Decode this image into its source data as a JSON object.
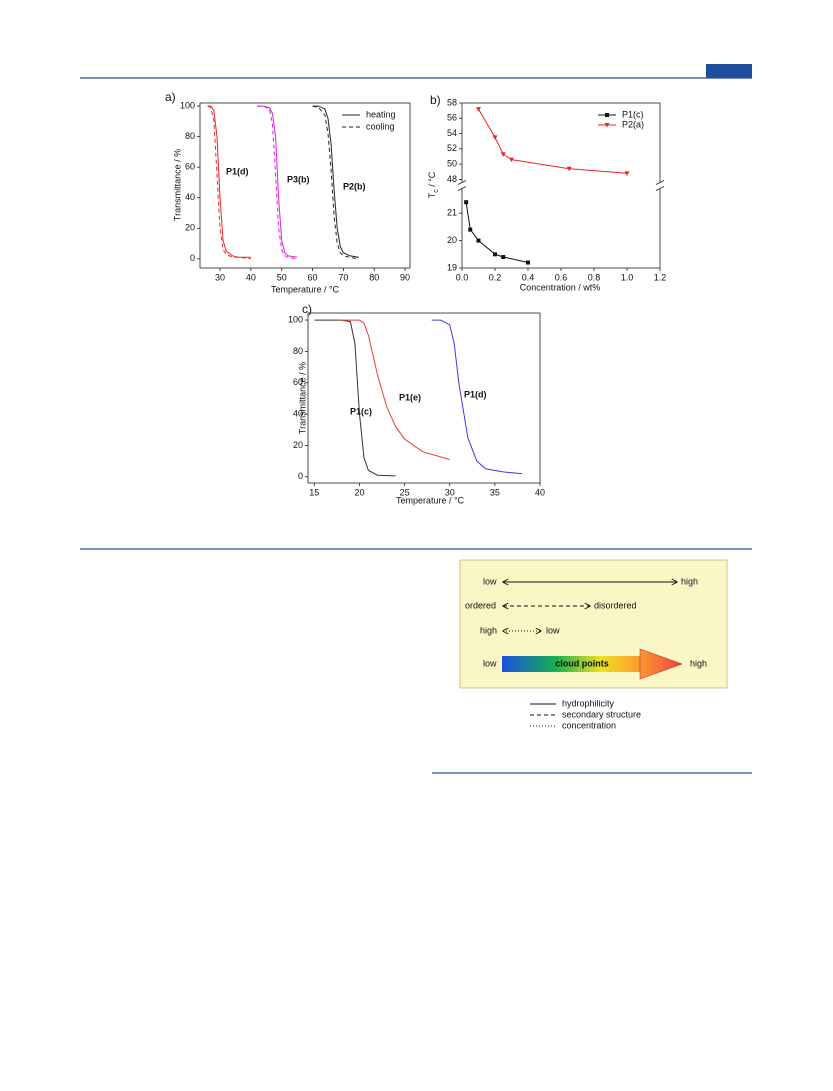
{
  "chart_data": [
    {
      "type": "line",
      "panel_label": "a)",
      "xlabel": "Temperature / °C",
      "ylabel": "Transmittance / %",
      "xlim": [
        23.5,
        91.6
      ],
      "ylim": [
        -6,
        102
      ],
      "xticks": [
        30,
        40,
        50,
        60,
        70,
        80,
        90
      ],
      "yticks": [
        0,
        20,
        40,
        60,
        80,
        100
      ],
      "legend_entries": [
        {
          "label": "heating",
          "style": "solid"
        },
        {
          "label": "cooling",
          "style": "dashed"
        }
      ],
      "annotations": [
        "P1(d)",
        "P3(b)",
        "P2(b)"
      ],
      "series": [
        {
          "color": "#e8262a",
          "style": "solid",
          "x": [
            26,
            27,
            28,
            29,
            30,
            31,
            32,
            34,
            36,
            40
          ],
          "values": [
            100,
            100,
            97,
            80,
            40,
            12,
            5,
            2,
            1,
            1
          ]
        },
        {
          "color": "#e8262a",
          "style": "dashed",
          "x": [
            26,
            27,
            28,
            29,
            30,
            31,
            32,
            34,
            36,
            40
          ],
          "values": [
            100,
            99,
            90,
            55,
            20,
            6,
            3,
            1,
            1,
            0
          ]
        },
        {
          "color": "#e020e0",
          "style": "solid",
          "x": [
            42,
            44,
            46,
            47,
            48,
            49,
            50,
            51,
            52,
            55
          ],
          "values": [
            100,
            100,
            99,
            95,
            80,
            40,
            12,
            4,
            2,
            1
          ]
        },
        {
          "color": "#e020e0",
          "style": "dashed",
          "x": [
            42,
            44,
            46,
            47,
            48,
            49,
            50,
            51,
            52,
            55
          ],
          "values": [
            100,
            100,
            98,
            88,
            55,
            20,
            6,
            2,
            1,
            0
          ]
        },
        {
          "color": "#222222",
          "style": "solid",
          "x": [
            60,
            62,
            64,
            65,
            66,
            67,
            68,
            69,
            70,
            72,
            75
          ],
          "values": [
            100,
            100,
            98,
            92,
            75,
            45,
            20,
            8,
            4,
            2,
            1
          ]
        },
        {
          "color": "#222222",
          "style": "dashed",
          "x": [
            60,
            62,
            64,
            65,
            66,
            67,
            68,
            69,
            70,
            72,
            75
          ],
          "values": [
            100,
            99,
            94,
            82,
            58,
            28,
            10,
            4,
            2,
            1,
            0
          ]
        }
      ]
    },
    {
      "type": "line",
      "panel_label": "b)",
      "xlabel": "Concentration / wt%",
      "ylabel": [
        "T",
        "c",
        " / °C"
      ],
      "xlim": [
        0,
        1.2
      ],
      "ylim": [
        19,
        58
      ],
      "ybreak": [
        21.9,
        47.6
      ],
      "xticks": [
        {
          "value": 0,
          "label": "0.0"
        },
        0.2,
        0.4,
        0.6,
        0.8,
        {
          "value": 1,
          "label": "1.0"
        },
        1.2
      ],
      "yticks": [
        19,
        20,
        21,
        48,
        50,
        52,
        54,
        56,
        58
      ],
      "series": [
        {
          "name": "P1(c)",
          "color": "#111111",
          "marker": "square",
          "x": [
            0.025,
            0.05,
            0.1,
            0.2,
            0.25,
            0.4
          ],
          "values": [
            21.4,
            20.4,
            20.0,
            19.5,
            19.4,
            19.2
          ]
        },
        {
          "name": "P2(a)",
          "color": "#e8262a",
          "marker": "triangle-down",
          "x": [
            0.1,
            0.2,
            0.25,
            0.3,
            0.65,
            1.0
          ],
          "values": [
            57.2,
            53.5,
            51.3,
            50.6,
            49.4,
            48.8
          ]
        }
      ]
    },
    {
      "type": "line",
      "panel_label": "c)",
      "xlabel": "Temperature / °C",
      "ylabel": "Transmittance / %",
      "xlim": [
        14.3,
        40
      ],
      "ylim": [
        -4,
        104.5
      ],
      "xticks": [
        15,
        20,
        25,
        30,
        35,
        40
      ],
      "yticks": [
        0,
        20,
        40,
        60,
        80,
        100
      ],
      "annotations": [
        "P1(c)",
        "P1(e)",
        "P1(d)"
      ],
      "series": [
        {
          "color": "#333333",
          "style": "solid",
          "x": [
            15,
            17,
            18,
            19,
            19.5,
            20,
            20.5,
            21,
            22,
            24
          ],
          "values": [
            100,
            100,
            100,
            99,
            85,
            40,
            12,
            4,
            1,
            0.5
          ]
        },
        {
          "color": "#ee3b3b",
          "style": "solid",
          "x": [
            18,
            20,
            20.5,
            21,
            22,
            23,
            24,
            25,
            27,
            30
          ],
          "values": [
            100,
            100,
            98,
            90,
            65,
            45,
            32,
            24,
            16,
            11
          ]
        },
        {
          "color": "#3a3af0",
          "style": "solid",
          "x": [
            28,
            29,
            30,
            30.5,
            31,
            32,
            33,
            34,
            36,
            38
          ],
          "values": [
            100,
            100,
            97,
            85,
            60,
            25,
            10,
            5,
            3,
            2
          ]
        }
      ]
    }
  ],
  "diagram": {
    "scales": [
      {
        "left": "low",
        "right": "high",
        "style": "solid"
      },
      {
        "left": "ordered",
        "right": "disordered",
        "style": "dashed"
      },
      {
        "left": "high",
        "right": "low",
        "style": "dotted"
      }
    ],
    "gradient": {
      "left": "low",
      "label": "cloud points",
      "right": "high"
    },
    "legend": [
      {
        "label": "hydrophilicity",
        "style": "solid"
      },
      {
        "label": "secondary structure",
        "style": "dashed"
      },
      {
        "label": "concentration",
        "style": "dotted"
      }
    ]
  }
}
